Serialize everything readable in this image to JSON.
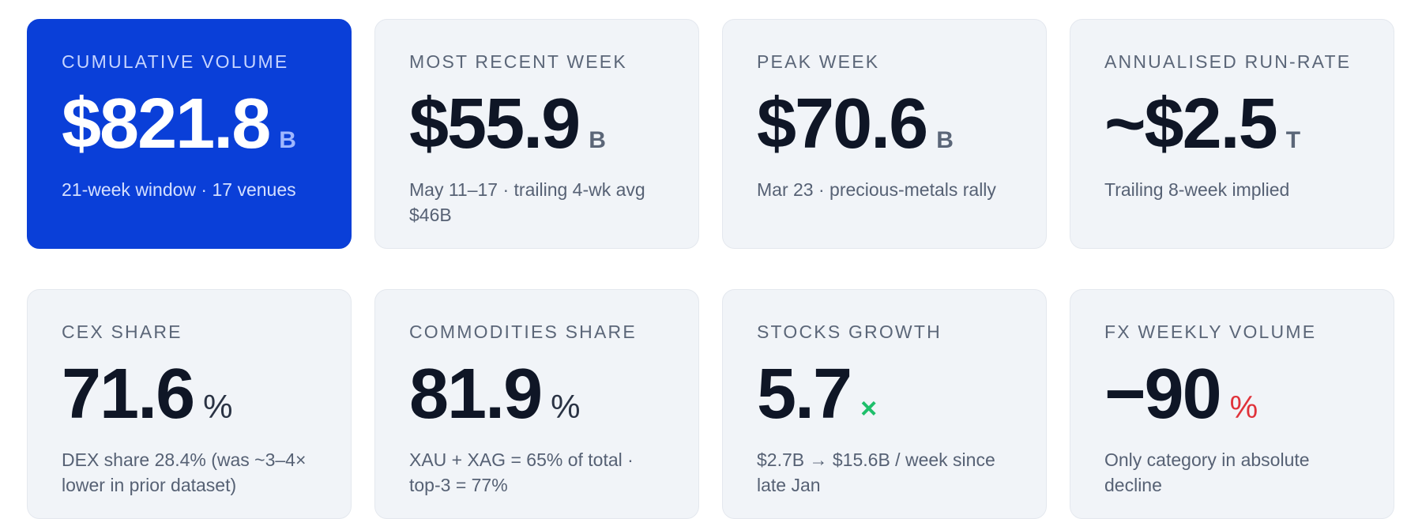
{
  "cards": [
    {
      "label": "CUMULATIVE VOLUME",
      "value": "$821.8",
      "unit": "B",
      "sub": "21-week window · 17 venues"
    },
    {
      "label": "MOST RECENT WEEK",
      "value": "$55.9",
      "unit": "B",
      "sub": "May 11–17 · trailing 4-wk avg $46B"
    },
    {
      "label": "PEAK WEEK",
      "value": "$70.6",
      "unit": "B",
      "sub": "Mar 23 · precious-metals rally"
    },
    {
      "label": "ANNUALISED RUN-RATE",
      "value": "~$2.5",
      "unit": "T",
      "sub": "Trailing 8-week implied"
    },
    {
      "label": "CEX SHARE",
      "value": "71.6",
      "unit": "%",
      "sub": "DEX share 28.4% (was ~3–4× lower in prior dataset)"
    },
    {
      "label": "COMMODITIES SHARE",
      "value": "81.9",
      "unit": "%",
      "sub": "XAU + XAG = 65% of total · top-3 = 77%"
    },
    {
      "label": "STOCKS GROWTH",
      "value": "5.7",
      "unit": "×",
      "sub": "$2.7B → $15.6B / week since late Jan"
    },
    {
      "label": "FX WEEKLY VOLUME",
      "value": "−90",
      "unit": "%",
      "sub": "Only category in absolute decline"
    }
  ],
  "colors": {
    "primary_card": "#0a3fd8",
    "card_bg": "#f1f4f8",
    "growth_green": "#1fbf6b",
    "decline_red": "#e0323a"
  }
}
